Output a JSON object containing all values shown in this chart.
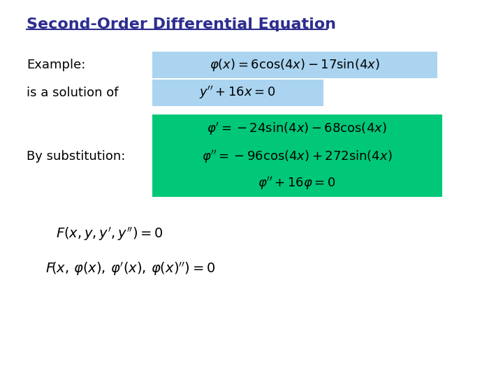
{
  "title": "Second-Order Differential Equation",
  "title_color": "#2d2d8f",
  "bg_color": "#ffffff",
  "light_blue_bg": "#aad4f0",
  "green_bg": "#00c878",
  "example_label": "Example:",
  "solution_label": "is a solution of",
  "substitution_label": "By substitution:"
}
